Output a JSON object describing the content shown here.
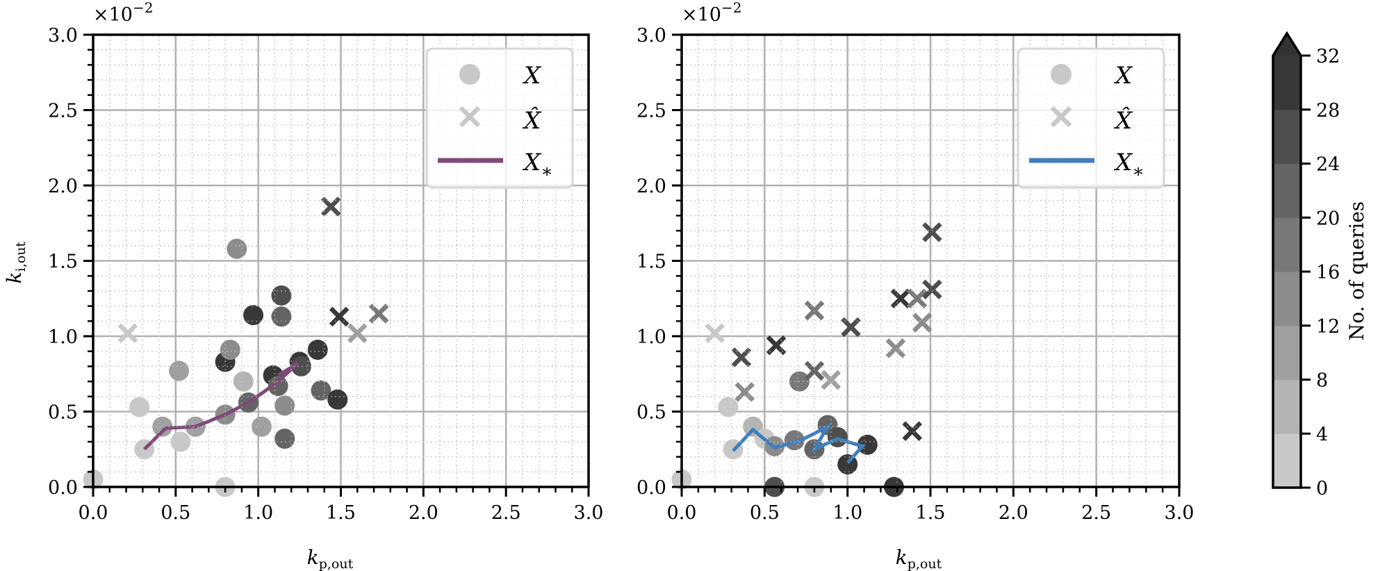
{
  "chart_data": [
    {
      "type": "scatter",
      "title": "",
      "xlabel": "k_p,out",
      "ylabel": "k_i,out",
      "x_ticks": [
        "0.0",
        "0.5",
        "1.0",
        "1.5",
        "2.0",
        "2.5",
        "3.0"
      ],
      "y_ticks": [
        "0.0",
        "0.5",
        "1.0",
        "1.5",
        "2.0",
        "2.5",
        "3.0"
      ],
      "y_offset_label": "×10⁻²",
      "xlim": [
        0,
        3
      ],
      "ylim": [
        0,
        3
      ],
      "grid": true,
      "line_color": "#7f4a78",
      "legend": {
        "position": "upper right",
        "entries": [
          "X",
          "X̂",
          "X*"
        ]
      },
      "series": [
        {
          "name": "X",
          "marker": "circle",
          "points": [
            [
              0.0,
              0.05,
              0
            ],
            [
              0.28,
              0.53,
              0
            ],
            [
              0.31,
              0.25,
              0
            ],
            [
              0.42,
              0.4,
              8
            ],
            [
              0.53,
              0.3,
              0
            ],
            [
              0.52,
              0.77,
              8
            ],
            [
              0.62,
              0.4,
              8
            ],
            [
              0.8,
              0.0,
              0
            ],
            [
              0.8,
              0.48,
              12
            ],
            [
              0.8,
              0.83,
              28
            ],
            [
              0.83,
              0.91,
              12
            ],
            [
              0.87,
              1.58,
              12
            ],
            [
              0.91,
              0.7,
              4
            ],
            [
              0.94,
              0.56,
              20
            ],
            [
              0.97,
              1.14,
              28
            ],
            [
              1.02,
              0.4,
              8
            ],
            [
              1.09,
              0.74,
              28
            ],
            [
              1.12,
              0.67,
              20
            ],
            [
              1.14,
              1.27,
              24
            ],
            [
              1.14,
              1.13,
              20
            ],
            [
              1.16,
              0.54,
              12
            ],
            [
              1.16,
              0.32,
              20
            ],
            [
              1.25,
              0.83,
              28
            ],
            [
              1.26,
              0.8,
              24
            ],
            [
              1.36,
              0.91,
              28
            ],
            [
              1.38,
              0.64,
              20
            ],
            [
              1.48,
              0.58,
              28
            ]
          ]
        },
        {
          "name": "X̂",
          "marker": "x",
          "points": [
            [
              0.21,
              1.02,
              0
            ],
            [
              1.44,
              1.86,
              24
            ],
            [
              1.49,
              1.13,
              28
            ],
            [
              1.6,
              1.02,
              8
            ],
            [
              1.73,
              1.15,
              16
            ]
          ]
        },
        {
          "name": "X*",
          "marker": "line",
          "points": [
            [
              0.31,
              0.25
            ],
            [
              0.44,
              0.39
            ],
            [
              0.62,
              0.4
            ],
            [
              0.8,
              0.48
            ],
            [
              0.94,
              0.56
            ],
            [
              1.02,
              0.62
            ],
            [
              1.12,
              0.7
            ],
            [
              1.24,
              0.82
            ],
            [
              1.12,
              0.74
            ]
          ]
        }
      ]
    },
    {
      "type": "scatter",
      "title": "",
      "xlabel": "k_p,out",
      "ylabel": "",
      "x_ticks": [
        "0.0",
        "0.5",
        "1.0",
        "1.5",
        "2.0",
        "2.5",
        "3.0"
      ],
      "y_ticks": [
        "0.0",
        "0.5",
        "1.0",
        "1.5",
        "2.0",
        "2.5",
        "3.0"
      ],
      "y_offset_label": "×10⁻²",
      "xlim": [
        0,
        3
      ],
      "ylim": [
        0,
        3
      ],
      "grid": true,
      "line_color": "#3f7fbf",
      "legend": {
        "position": "upper right",
        "entries": [
          "X",
          "X̂",
          "X*"
        ]
      },
      "series": [
        {
          "name": "X",
          "marker": "circle",
          "points": [
            [
              0.0,
              0.05,
              0
            ],
            [
              0.28,
              0.53,
              0
            ],
            [
              0.31,
              0.25,
              0
            ],
            [
              0.43,
              0.4,
              4
            ],
            [
              0.5,
              0.32,
              0
            ],
            [
              0.56,
              0.0,
              24
            ],
            [
              0.56,
              0.27,
              12
            ],
            [
              0.71,
              0.7,
              16
            ],
            [
              0.68,
              0.31,
              16
            ],
            [
              0.8,
              0.0,
              0
            ],
            [
              0.8,
              0.25,
              20
            ],
            [
              0.88,
              0.41,
              20
            ],
            [
              0.94,
              0.33,
              24
            ],
            [
              1.0,
              0.15,
              28
            ],
            [
              1.12,
              0.28,
              28
            ],
            [
              1.28,
              0.0,
              28
            ]
          ]
        },
        {
          "name": "X̂",
          "marker": "x",
          "points": [
            [
              0.2,
              1.02,
              0
            ],
            [
              0.36,
              0.86,
              24
            ],
            [
              0.38,
              0.63,
              12
            ],
            [
              0.57,
              0.94,
              28
            ],
            [
              0.8,
              1.17,
              16
            ],
            [
              0.8,
              0.77,
              20
            ],
            [
              0.9,
              0.71,
              8
            ],
            [
              1.02,
              1.06,
              24
            ],
            [
              1.29,
              0.92,
              12
            ],
            [
              1.32,
              1.25,
              28
            ],
            [
              1.42,
              1.25,
              16
            ],
            [
              1.45,
              1.09,
              12
            ],
            [
              1.51,
              1.31,
              24
            ],
            [
              1.51,
              1.69,
              24
            ],
            [
              1.39,
              0.37,
              28
            ]
          ]
        },
        {
          "name": "X*",
          "marker": "line",
          "points": [
            [
              0.31,
              0.24
            ],
            [
              0.43,
              0.38
            ],
            [
              0.56,
              0.26
            ],
            [
              0.72,
              0.31
            ],
            [
              0.88,
              0.4
            ],
            [
              0.8,
              0.25
            ],
            [
              0.94,
              0.32
            ],
            [
              1.09,
              0.27
            ],
            [
              1.0,
              0.16
            ]
          ]
        }
      ]
    }
  ],
  "colorbar": {
    "label": "No. of queries",
    "ticks": [
      "0",
      "4",
      "8",
      "12",
      "16",
      "20",
      "24",
      "28",
      "32"
    ],
    "range": [
      0,
      32
    ],
    "extend": "max",
    "band_colors": [
      "#c8c8c8",
      "#b4b4b4",
      "#a0a0a0",
      "#8c8c8c",
      "#787878",
      "#646464",
      "#4e4e4e",
      "#383838"
    ],
    "over_color": "#333333"
  },
  "plots": [
    {
      "xlabel_main": "k",
      "xlabel_sub": "p,out",
      "ylabel_main": "k",
      "ylabel_sub": "i,out",
      "offset": "×10",
      "offset_exp": "−2",
      "legend": {
        "x_label": "X",
        "xhat_label": "X̂",
        "xstar_label": "X",
        "xstar_sub": "∗"
      }
    },
    {
      "xlabel_main": "k",
      "xlabel_sub": "p,out",
      "offset": "×10",
      "offset_exp": "−2",
      "legend": {
        "x_label": "X",
        "xhat_label": "X̂",
        "xstar_label": "X",
        "xstar_sub": "∗"
      }
    }
  ]
}
